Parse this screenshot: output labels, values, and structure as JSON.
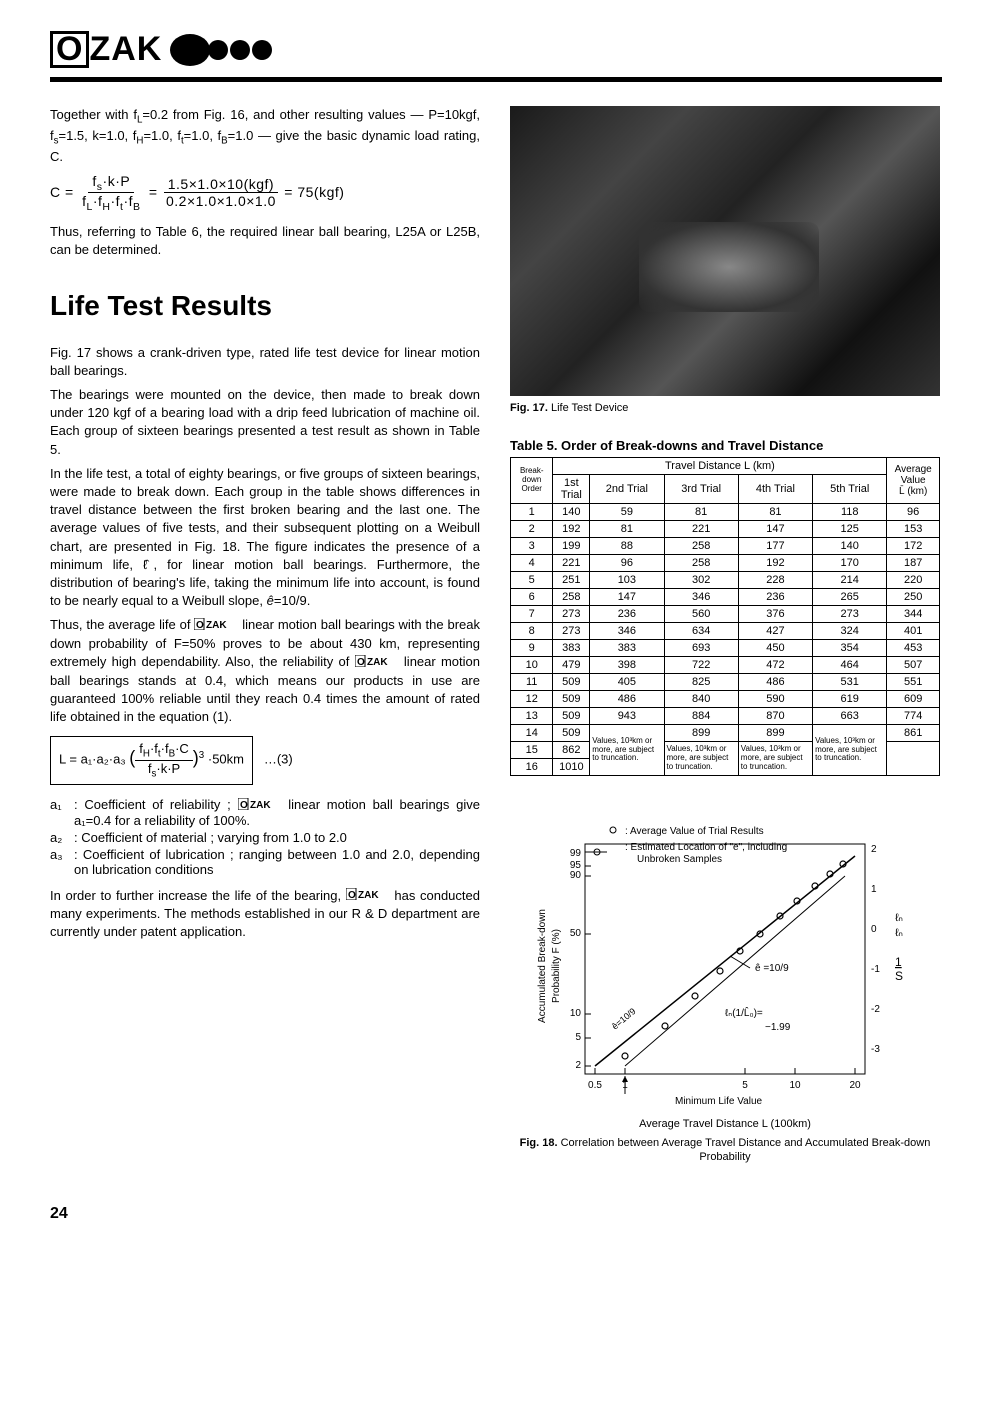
{
  "logo": {
    "text": "ZAK"
  },
  "intro": {
    "p1": "Together with f_L=0.2 from Fig. 16, and other resulting values — P=10kgf, f_s=1.5, k=1.0, f_H=1.0, f_t=1.0, f_B=1.0 — give the basic dynamic load rating, C.",
    "formula_top1": "f_s·k·P",
    "formula_bot1": "f_L·f_H·f_t·f_B",
    "formula_top2": "1.5×1.0×10(kgf)",
    "formula_bot2": "0.2×1.0×1.0×1.0",
    "formula_result": "= 75(kgf)",
    "p2": "Thus, referring to Table 6, the required linear ball bearing, L25A or L25B, can be determined."
  },
  "heading": "Life Test Results",
  "body": {
    "p1": "Fig. 17 shows a crank-driven type, rated life test device for linear motion ball bearings.",
    "p2": "The bearings were mounted on the device, then made to break down under 120 kgf of a bearing load with a drip feed lubrication of machine oil. Each group of sixteen bearings presented a test result as shown in Table 5.",
    "p3": "In the life test, a total of eighty bearings, or five groups of sixteen bearings, were made to break down. Each group in the table shows differences in travel distance between the first broken bearing and the last one. The average values of five tests, and their subsequent plotting on a Weibull chart, are presented in Fig. 18. The figure indicates the presence of a minimum life, ℓ̂, for linear motion ball bearings. Furthermore, the distribution of bearing's life, taking the minimum life into account, is found to be nearly equal to a Weibull slope, ê=10/9.",
    "p4_a": "Thus, the average life of ",
    "p4_b": " linear motion ball bearings with the break down probability of F=50% proves to be about 430 km, representing extremely high dependability. Also, the reliability of ",
    "p4_c": " linear motion ball bearings stands at 0.4, which means our products in use are guaranteed 100% reliable until they reach 0.4 times the amount of rated life obtained in the equation (1).",
    "eq3_lhs": "L = a₁·a₂·a₃",
    "eq3_top": "f_H·f_t·f_B·C",
    "eq3_bot": "f_s·k·P",
    "eq3_tail": "·50km",
    "eq3_num": "…(3)",
    "a1_a": "a₁ : Coefficient of reliability ; ",
    "a1_b": " linear motion ball bearings give a₁=0.4 for a reliability of 100%.",
    "a2": "a₂ : Coefficient of material ; varying from 1.0 to 2.0",
    "a3": "a₃ : Coefficient of lubrication ; ranging between 1.0 and 2.0, depending on lubrication conditions",
    "p5_a": "In order to further increase the life of the bearing, ",
    "p5_b": " has conducted many experiments. The methods established in our R & D department are currently under patent application."
  },
  "fig17": {
    "label": "Fig. 17.",
    "caption": "Life Test Device"
  },
  "table5": {
    "title": "Table 5. Order of Break-downs and Travel Distance",
    "head_group": "Travel Distance L (km)",
    "head_breakdown": "Break-down Order",
    "head_avg1": "Average Value",
    "head_avg2": "L̄ (km)",
    "cols": [
      "1st Trial",
      "2nd Trial",
      "3rd Trial",
      "4th Trial",
      "5th Trial"
    ],
    "rows": [
      [
        "1",
        "140",
        "59",
        "81",
        "81",
        "118",
        "96"
      ],
      [
        "2",
        "192",
        "81",
        "221",
        "147",
        "125",
        "153"
      ],
      [
        "3",
        "199",
        "88",
        "258",
        "177",
        "140",
        "172"
      ],
      [
        "4",
        "221",
        "96",
        "258",
        "192",
        "170",
        "187"
      ],
      [
        "5",
        "251",
        "103",
        "302",
        "228",
        "214",
        "220"
      ],
      [
        "6",
        "258",
        "147",
        "346",
        "236",
        "265",
        "250"
      ],
      [
        "7",
        "273",
        "236",
        "560",
        "376",
        "273",
        "344"
      ],
      [
        "8",
        "273",
        "346",
        "634",
        "427",
        "324",
        "401"
      ],
      [
        "9",
        "383",
        "383",
        "693",
        "450",
        "354",
        "453"
      ],
      [
        "10",
        "479",
        "398",
        "722",
        "472",
        "464",
        "507"
      ],
      [
        "11",
        "509",
        "405",
        "825",
        "486",
        "531",
        "551"
      ],
      [
        "12",
        "509",
        "486",
        "840",
        "590",
        "619",
        "609"
      ],
      [
        "13",
        "509",
        "943",
        "884",
        "870",
        "663",
        "774"
      ]
    ],
    "row14": [
      "14",
      "509",
      "899",
      "899",
      "861"
    ],
    "row15": [
      "15",
      "862"
    ],
    "row16": [
      "16",
      "1010"
    ],
    "trunc_a": "Values, 10³km or more, are subject to truncation.",
    "trunc_b": "Values, 10³km or more, are subject to truncation.",
    "trunc_c": "Values, 10³km or more, are subject to truncation.",
    "trunc_d": "Values, 10³km or more, are subject to truncation."
  },
  "fig18": {
    "legend1": ": Average Value of Trial Results",
    "legend2": ": Estimated Location of \"e\", including Unbroken Samples",
    "ylabel": "Accumulated Break-down Probability F (%)",
    "xlabel1": "Minimum Life Value",
    "xlabel2": "Average Travel Distance L (100km)",
    "e_label": "ê =10/9",
    "ell_label": "ℓₙ(1/L̂₀)= −1.99",
    "axis_r_top": "ℓₙ",
    "axis_r_bot": "1/S",
    "e109": "ê=10/9",
    "yticks": [
      "99",
      "95",
      "90",
      "50",
      "10",
      "5",
      "2"
    ],
    "xticks": [
      "0.5",
      "1",
      "5",
      "10",
      "20"
    ],
    "rticks": [
      "2",
      "1",
      "0",
      "-1",
      "-2",
      "-3"
    ],
    "label": "Fig. 18.",
    "caption": "Correlation between Average Travel Distance and Accumulated Break-down Probability"
  },
  "pagenum": "24",
  "colors": {
    "ink": "#000000",
    "bg": "#ffffff"
  }
}
